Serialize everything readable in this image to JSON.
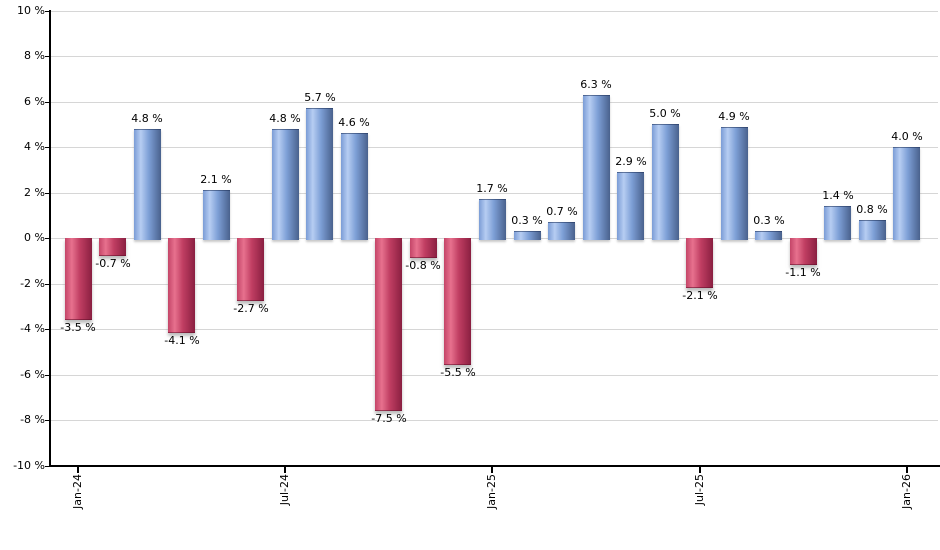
{
  "chart_data": {
    "type": "bar",
    "title": "",
    "legend": "none",
    "grid": true,
    "categories": [
      "Jan-24",
      "Feb-24",
      "Mar-24",
      "Apr-24",
      "May-24",
      "Jun-24",
      "Jul-24",
      "Aug-24",
      "Sep-24",
      "Oct-24",
      "Nov-24",
      "Dec-24",
      "Jan-25",
      "Feb-25",
      "Mar-25",
      "Apr-25",
      "May-25",
      "Jun-25",
      "Jul-25",
      "Aug-25",
      "Sep-25",
      "Oct-25",
      "Nov-25",
      "Dec-25",
      "Jan-26"
    ],
    "values": [
      -3.5,
      -0.7,
      4.8,
      -4.1,
      2.1,
      -2.7,
      4.8,
      5.7,
      4.6,
      -7.5,
      -0.8,
      -5.5,
      1.7,
      0.3,
      0.7,
      6.3,
      2.9,
      5.0,
      -2.1,
      4.9,
      0.3,
      -1.1,
      1.4,
      0.8,
      4.0
    ],
    "data_labels": [
      "-3.5 %",
      "-0.7 %",
      "4.8 %",
      "-4.1 %",
      "2.1 %",
      "-2.7 %",
      "4.8 %",
      "5.7 %",
      "4.6 %",
      "-7.5 %",
      "-0.8 %",
      "-5.5 %",
      "1.7 %",
      "0.3 %",
      "0.7 %",
      "6.3 %",
      "2.9 %",
      "5.0 %",
      "-2.1 %",
      "4.9 %",
      "0.3 %",
      "-1.1 %",
      "1.4 %",
      "0.8 %",
      "4.0 %"
    ],
    "x_axis": {
      "tick_labels": [
        "Jan-24",
        "Jul-24",
        "Jan-25",
        "Jul-25",
        "Jan-26"
      ],
      "tick_month_indexes": [
        0,
        6,
        12,
        18,
        24
      ]
    },
    "y_axis": {
      "tick_values": [
        10,
        8,
        6,
        4,
        2,
        0,
        -2,
        -4,
        -6,
        -8,
        -10
      ],
      "tick_labels": [
        "10 %",
        "8 %",
        "6 %",
        "4 %",
        "2 %",
        "0 %",
        "-2 %",
        "-4 %",
        "-6 %",
        "-8 %",
        "-10 %"
      ],
      "ylim": [
        -10,
        10
      ]
    },
    "colors": {
      "positive_gradient": [
        "#7b9cd6",
        "#b6cdf2",
        "#7d9fd6",
        "#49618d"
      ],
      "negative_gradient": [
        "#c44568",
        "#e7718e",
        "#c03e62",
        "#8a1f41"
      ],
      "gridline": "#d6d6d6",
      "axis": "#000000",
      "text": "#000000",
      "background": "#ffffff"
    }
  }
}
